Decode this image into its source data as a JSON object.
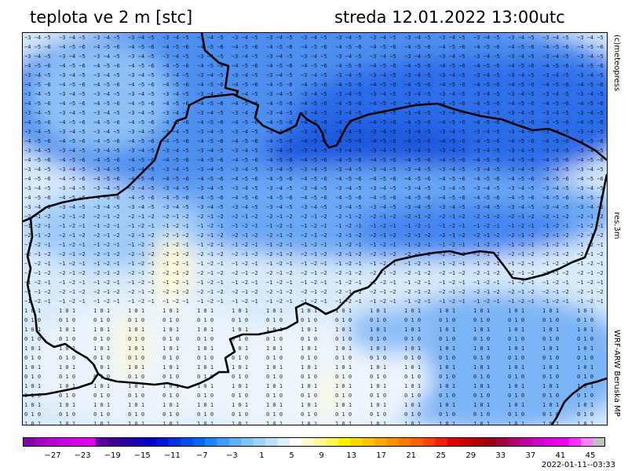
{
  "header": {
    "variable_title": "teplota ve 2 m [stc]",
    "valid_time": "streda 12.01.2022 13:00utc"
  },
  "side_labels": {
    "copyright": "(c)meteopress",
    "resolution": "res.3m",
    "model": "WRF-ARW Beruska MP"
  },
  "colorbar": {
    "min": -31,
    "max": 47,
    "tick_labels": [
      "-27",
      "-23",
      "-19",
      "-15",
      "-11",
      "-7",
      "-3",
      "1",
      "5",
      "9",
      "13",
      "17",
      "21",
      "25",
      "29",
      "33",
      "37",
      "41",
      "45"
    ],
    "palette": [
      "#8800a8",
      "#a000c0",
      "#b400d4",
      "#c800e0",
      "#d800e8",
      "#e400f0",
      "#5a00a0",
      "#3c0090",
      "#2a00a0",
      "#1800b4",
      "#0000c8",
      "#0014d8",
      "#0030e4",
      "#004cf0",
      "#0068f4",
      "#1c84f8",
      "#3c9cfc",
      "#5cb0fc",
      "#7cc4fc",
      "#9cd4fc",
      "#bce2fc",
      "#dcf0fc",
      "#ffffff",
      "#fffccc",
      "#fff890",
      "#fff450",
      "#fff000",
      "#ffd800",
      "#ffc000",
      "#ffa800",
      "#ff9000",
      "#ff7800",
      "#ff6000",
      "#ff4000",
      "#f02000",
      "#e00000",
      "#c80000",
      "#b00000",
      "#980010",
      "#a00040",
      "#b00070",
      "#c000a0",
      "#d000c8",
      "#e000e0",
      "#f000f0",
      "#ff30ff",
      "#ff80ff",
      "#c0c0c0"
    ]
  },
  "timestamp": "2022-01-11--03:33"
}
